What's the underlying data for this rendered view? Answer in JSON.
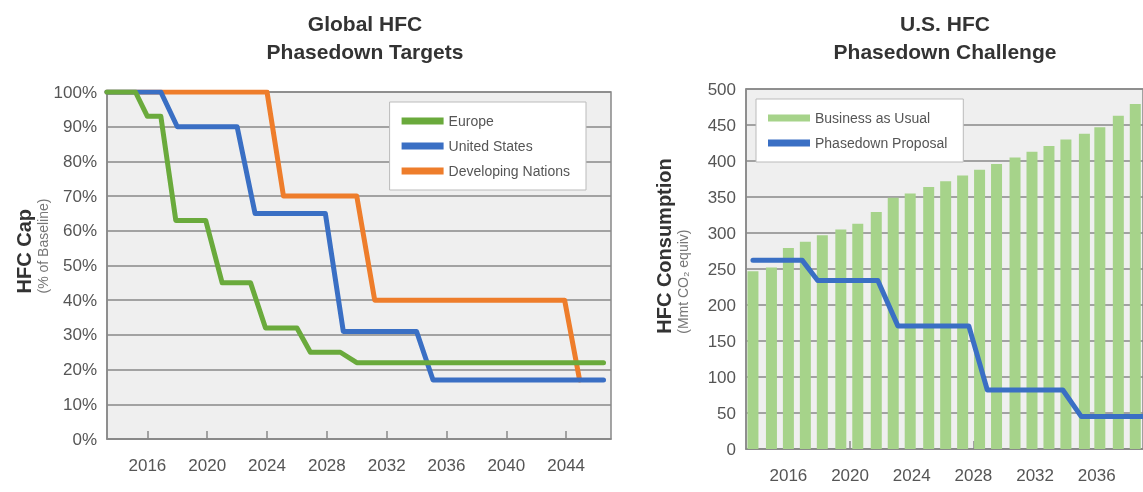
{
  "chart_data": [
    {
      "type": "line",
      "title": "Global HFC\nPhasedown Targets",
      "ylabel": "HFC Cap\n(% of Baseline)",
      "xlim": [
        2013.3,
        2047
      ],
      "xticks": [
        2016,
        2020,
        2024,
        2028,
        2032,
        2036,
        2040,
        2044
      ],
      "ylim": [
        0,
        100
      ],
      "yticks": [
        {
          "value": 0,
          "label": "0%"
        },
        {
          "value": 10,
          "label": "10%"
        },
        {
          "value": 20,
          "label": "20%"
        },
        {
          "value": 30,
          "label": "30%"
        },
        {
          "value": 40,
          "label": "40%"
        },
        {
          "value": 50,
          "label": "50%"
        },
        {
          "value": 60,
          "label": "60%"
        },
        {
          "value": 70,
          "label": "70%"
        },
        {
          "value": 80,
          "label": "80%"
        },
        {
          "value": 90,
          "label": "90%"
        },
        {
          "value": 100,
          "label": "100%"
        }
      ],
      "grid": "y",
      "legend": "top right",
      "marker": "none",
      "line_style": "solid",
      "series": [
        {
          "name": "Europe",
          "color": "#6aaa3c",
          "x": [
            2013.3,
            2015.2,
            2016,
            2016.9,
            2017.9,
            2019.9,
            2021,
            2022.9,
            2023.9,
            2026,
            2026.9,
            2028.9,
            2030,
            2046.5
          ],
          "values": [
            100,
            100,
            93,
            93,
            63,
            63,
            45,
            45,
            32,
            32,
            25,
            25,
            22,
            22
          ]
        },
        {
          "name": "United States",
          "color": "#3a6fc4",
          "x": [
            2013.3,
            2016.9,
            2018,
            2022,
            2023.2,
            2027.9,
            2029.1,
            2034,
            2035.1,
            2046.5
          ],
          "values": [
            100,
            100,
            90,
            90,
            65,
            65,
            31,
            31,
            17,
            17
          ]
        },
        {
          "name": "Developing Nations",
          "color": "#ee7d2b",
          "x": [
            2013.3,
            2024,
            2025.1,
            2030,
            2031.2,
            2043.9,
            2044.9
          ],
          "values": [
            100,
            100,
            70,
            70,
            40,
            40,
            17
          ]
        }
      ]
    },
    {
      "type": "bar",
      "title": "U.S. HFC\nPhasedown Challenge",
      "ylabel": "HFC Consumption\n(Mmt CO₂ equiv)",
      "xlim": [
        2013.25,
        2039
      ],
      "xticks": [
        2016,
        2020,
        2024,
        2028,
        2032,
        2036
      ],
      "ylim": [
        0,
        500
      ],
      "yticks": [
        0,
        50,
        100,
        150,
        200,
        250,
        300,
        350,
        400,
        450,
        500
      ],
      "grid": "y",
      "legend": "top left",
      "series": [
        {
          "name": "Business as Usual",
          "type": "bar",
          "color": "#a6d38a",
          "x": [
            2013.7,
            2014.9,
            2016.0,
            2017.1,
            2018.2,
            2019.4,
            2020.5,
            2021.7,
            2022.8,
            2023.9,
            2025.1,
            2026.2,
            2027.3,
            2028.4,
            2029.5,
            2030.7,
            2031.8,
            2032.9,
            2034.0,
            2035.2,
            2036.2,
            2037.4,
            2038.5
          ],
          "values": [
            247,
            252,
            279,
            288,
            297,
            305,
            313,
            329,
            349,
            355,
            364,
            372,
            380,
            388,
            396,
            405,
            413,
            421,
            430,
            438,
            447,
            463,
            479
          ]
        },
        {
          "name": "Phasedown Proposal",
          "type": "line",
          "marker": "none",
          "line_style": "solid",
          "color": "#3a6fc4",
          "x": [
            2013.7,
            2016.9,
            2017.9,
            2021.8,
            2023.1,
            2027.7,
            2028.9,
            2033.8,
            2035,
            2039
          ],
          "values": [
            262,
            262,
            234,
            234,
            171,
            171,
            82,
            82,
            45,
            45
          ]
        }
      ]
    }
  ]
}
